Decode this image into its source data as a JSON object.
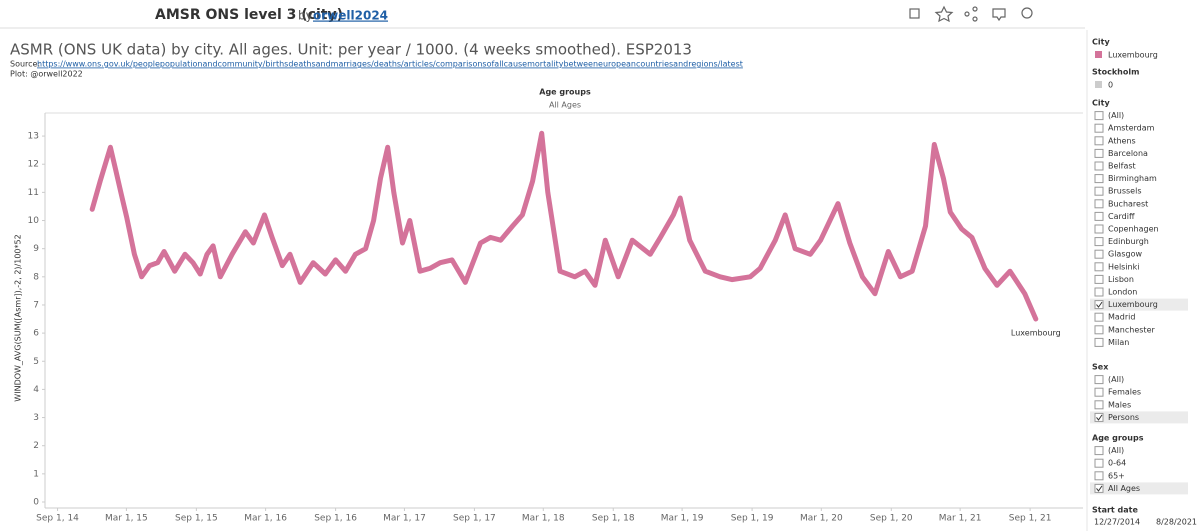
{
  "header": {
    "title": "AMSR ONS level 3 (city)",
    "by": "by",
    "author": "orwell2024"
  },
  "chart_data": {
    "type": "line",
    "title": "ASMR (ONS UK data) by city. All ages. Unit: per year / 1000. (4 weeks smoothed). ESP2013",
    "source_prefix": "Source:",
    "source_url": "https://www.ons.gov.uk/peoplepopulationandcommunity/birthsdeathsandmarriages/deaths/articles/comparisonsofallcausemortalitybetweeneuropeancountriesandregions/latest",
    "credit": "Plot: @orwell2022",
    "facet_title": "Age groups",
    "facet_value": "All Ages",
    "y_label": "WINDOW_AVG(SUM([Asmr]),-2, 2)/100*52",
    "x": [
      "2014-12-01",
      "2014-12-22",
      "2015-01-18",
      "2015-02-01",
      "2015-02-16",
      "2015-03-02",
      "2015-03-22",
      "2015-04-10",
      "2015-05-01",
      "2015-05-22",
      "2015-06-08",
      "2015-07-06",
      "2015-08-02",
      "2015-08-23",
      "2015-09-11",
      "2015-09-29",
      "2015-10-15",
      "2015-11-03",
      "2015-12-04",
      "2016-01-08",
      "2016-01-29",
      "2016-02-27",
      "2016-03-18",
      "2016-04-14",
      "2016-05-04",
      "2016-05-31",
      "2016-07-04",
      "2016-08-05",
      "2016-09-01",
      "2016-09-27",
      "2016-10-23",
      "2016-11-19",
      "2016-12-10",
      "2016-12-28",
      "2017-01-16",
      "2017-02-01",
      "2017-02-24",
      "2017-03-15",
      "2017-04-11",
      "2017-05-07",
      "2017-06-03",
      "2017-07-04",
      "2017-08-08",
      "2017-09-17",
      "2017-10-13",
      "2017-11-09",
      "2017-12-10",
      "2018-01-05",
      "2018-02-01",
      "2018-02-25",
      "2018-03-13",
      "2018-04-14",
      "2018-05-23",
      "2018-06-19",
      "2018-07-15",
      "2018-08-11",
      "2018-09-14",
      "2018-10-21",
      "2018-12-07",
      "2019-01-03",
      "2019-02-06",
      "2019-02-24",
      "2019-03-21",
      "2019-05-01",
      "2019-06-09",
      "2019-07-10",
      "2019-08-27",
      "2019-09-22",
      "2019-11-01",
      "2019-11-27",
      "2019-12-23",
      "2020-02-01",
      "2020-02-28",
      "2020-04-14",
      "2020-05-15",
      "2020-06-17",
      "2020-07-20",
      "2020-08-24",
      "2020-09-25",
      "2020-10-26",
      "2020-11-30",
      "2020-12-23",
      "2021-01-16",
      "2021-02-03",
      "2021-03-05",
      "2021-04-01",
      "2021-05-05",
      "2021-06-06",
      "2021-07-10",
      "2021-08-18",
      "2021-09-16"
    ],
    "series": [
      {
        "name": "Luxembourg",
        "color": "#d4739a",
        "values": [
          10.4,
          11.4,
          12.6,
          11.8,
          10.9,
          10.1,
          8.8,
          8.0,
          8.4,
          8.5,
          8.9,
          8.2,
          8.8,
          8.5,
          8.1,
          8.8,
          9.1,
          8.0,
          8.8,
          9.6,
          9.2,
          10.2,
          9.4,
          8.4,
          8.8,
          7.8,
          8.5,
          8.1,
          8.6,
          8.2,
          8.8,
          9.0,
          10.0,
          11.5,
          12.6,
          11.0,
          9.2,
          10.0,
          8.2,
          8.3,
          8.5,
          8.6,
          7.8,
          9.2,
          9.4,
          9.3,
          9.8,
          10.2,
          11.4,
          13.1,
          11.0,
          8.2,
          8.0,
          8.2,
          7.7,
          9.3,
          8.0,
          9.3,
          8.8,
          9.4,
          10.2,
          10.8,
          9.3,
          8.2,
          8.0,
          7.9,
          8.0,
          8.3,
          9.3,
          10.2,
          9.0,
          8.8,
          9.3,
          10.6,
          9.2,
          8.0,
          7.4,
          8.9,
          8.0,
          8.2,
          9.8,
          12.7,
          11.5,
          10.3,
          9.7,
          9.4,
          8.3,
          7.7,
          8.2,
          7.4,
          6.5
        ]
      }
    ],
    "xlim": [
      "2014-07-30",
      "2022-01-18"
    ],
    "xticks": [
      {
        "value": "2014-09-01",
        "label": "Sep 1, 14"
      },
      {
        "value": "2015-03-01",
        "label": "Mar 1, 15"
      },
      {
        "value": "2015-09-01",
        "label": "Sep 1, 15"
      },
      {
        "value": "2016-03-01",
        "label": "Mar 1, 16"
      },
      {
        "value": "2016-09-01",
        "label": "Sep 1, 16"
      },
      {
        "value": "2017-03-01",
        "label": "Mar 1, 17"
      },
      {
        "value": "2017-09-01",
        "label": "Sep 1, 17"
      },
      {
        "value": "2018-03-01",
        "label": "Mar 1, 18"
      },
      {
        "value": "2018-09-01",
        "label": "Sep 1, 18"
      },
      {
        "value": "2019-03-01",
        "label": "Mar 1, 19"
      },
      {
        "value": "2019-09-01",
        "label": "Sep 1, 19"
      },
      {
        "value": "2020-03-01",
        "label": "Mar 1, 20"
      },
      {
        "value": "2020-09-01",
        "label": "Sep 1, 20"
      },
      {
        "value": "2021-03-01",
        "label": "Mar 1, 21"
      },
      {
        "value": "2021-09-01",
        "label": "Sep 1, 21"
      }
    ],
    "ylim": [
      0,
      13.5
    ],
    "yticks": [
      0,
      1,
      2,
      3,
      4,
      5,
      6,
      7,
      8,
      9,
      10,
      11,
      12,
      13
    ],
    "grid": false
  },
  "panel": {
    "legend_title": "City",
    "stockholm_title": "Stockholm",
    "stockholm_value": 0,
    "filters": [
      {
        "title": "City",
        "items": [
          {
            "label": "(All)",
            "checked": false
          },
          {
            "label": "Amsterdam",
            "checked": false
          },
          {
            "label": "Athens",
            "checked": false
          },
          {
            "label": "Barcelona",
            "checked": false
          },
          {
            "label": "Belfast",
            "checked": false
          },
          {
            "label": "Birmingham",
            "checked": false
          },
          {
            "label": "Brussels",
            "checked": false
          },
          {
            "label": "Bucharest",
            "checked": false
          },
          {
            "label": "Cardiff",
            "checked": false
          },
          {
            "label": "Copenhagen",
            "checked": false
          },
          {
            "label": "Edinburgh",
            "checked": false
          },
          {
            "label": "Glasgow",
            "checked": false
          },
          {
            "label": "Helsinki",
            "checked": false
          },
          {
            "label": "Lisbon",
            "checked": false
          },
          {
            "label": "London",
            "checked": false
          },
          {
            "label": "Luxembourg",
            "checked": true
          },
          {
            "label": "Madrid",
            "checked": false
          },
          {
            "label": "Manchester",
            "checked": false
          },
          {
            "label": "Milan",
            "checked": false
          }
        ]
      },
      {
        "title": "Sex",
        "items": [
          {
            "label": "(All)",
            "checked": false
          },
          {
            "label": "Females",
            "checked": false
          },
          {
            "label": "Males",
            "checked": false
          },
          {
            "label": "Persons",
            "checked": true
          }
        ]
      },
      {
        "title": "Age groups",
        "items": [
          {
            "label": "(All)",
            "checked": false
          },
          {
            "label": "0-64",
            "checked": false
          },
          {
            "label": "65+",
            "checked": false
          },
          {
            "label": "All Ages",
            "checked": true
          }
        ]
      }
    ],
    "start_date": {
      "title": "Start date",
      "from": "12/27/2014",
      "to": "8/28/2021"
    }
  }
}
